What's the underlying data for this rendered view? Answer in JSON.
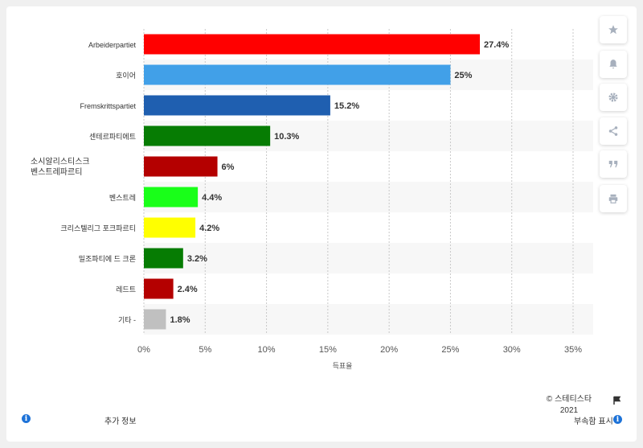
{
  "chart_data": {
    "type": "bar",
    "orientation": "horizontal",
    "categories": [
      "Arbeiderpartiet",
      "호이어",
      "Fremskrittspartiet",
      "센테르파티에트",
      "소시알리스티스크 벤스트레파르티",
      "벤스트레",
      "크리스텔리그 포크파르티",
      "밀조파티에 드 크론",
      "레드트",
      "기타 -"
    ],
    "values": [
      27.4,
      25,
      15.2,
      10.3,
      6,
      4.4,
      4.2,
      3.2,
      2.4,
      1.8
    ],
    "value_labels": [
      "27.4%",
      "25%",
      "15.2%",
      "10.3%",
      "6%",
      "4.4%",
      "4.2%",
      "3.2%",
      "2.4%",
      "1.8%"
    ],
    "colors": [
      "#ff0000",
      "#41a0e8",
      "#1f5fb0",
      "#067c03",
      "#b40000",
      "#19ff19",
      "#ffff00",
      "#067c03",
      "#b40000",
      "#c0c0c0"
    ],
    "xlim": [
      0,
      35
    ],
    "ticks": [
      "0%",
      "5%",
      "10%",
      "15%",
      "20%",
      "25%",
      "30%",
      "35%"
    ],
    "xlabel": "득표율",
    "grid": "vertical dotted"
  },
  "footer": {
    "source": "© 스테티스타 2021",
    "more_info": "추가 정보",
    "show_source": "부속함 표시"
  },
  "sidebar_icons": [
    "star-icon",
    "bell-icon",
    "gear-icon",
    "share-icon",
    "quote-icon",
    "print-icon"
  ]
}
